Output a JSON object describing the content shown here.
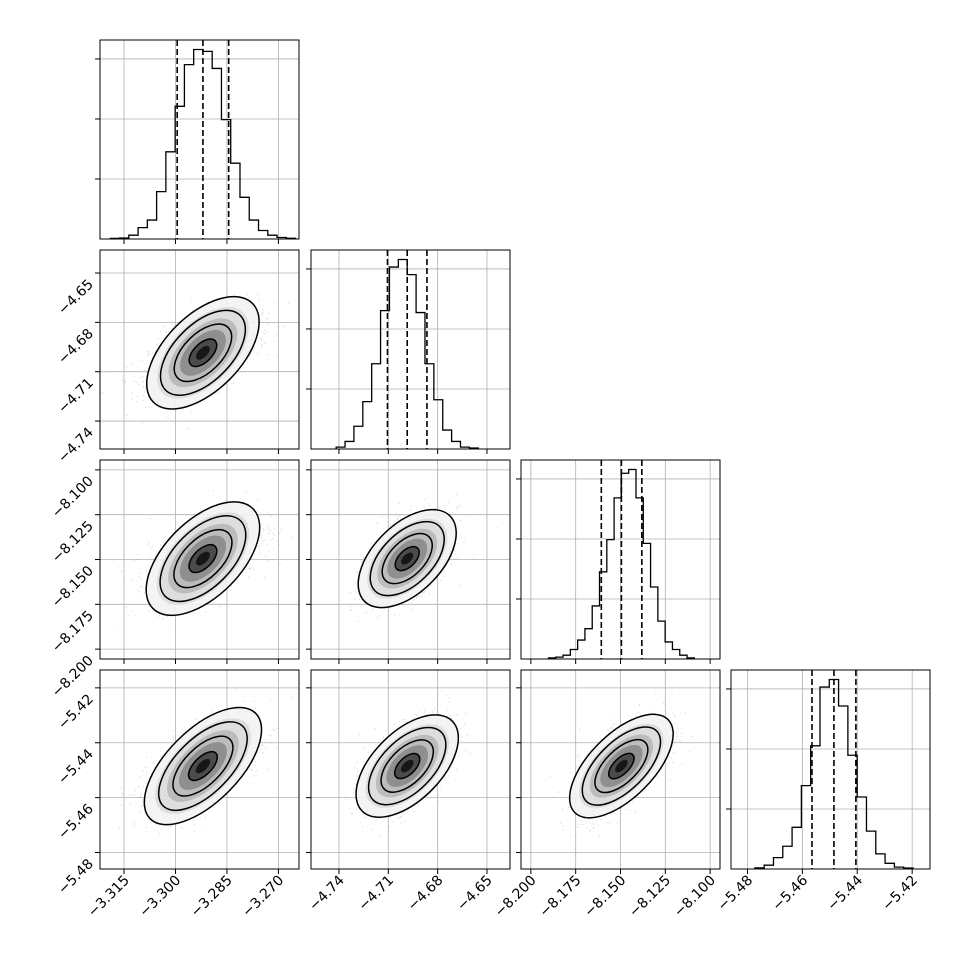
{
  "figure": {
    "type": "corner",
    "n_params": 4,
    "colors": {
      "line": "#000000",
      "grid": "#b0b0b0",
      "points": "#9a9a9a",
      "background": "#ffffff"
    }
  },
  "chart_data": {
    "type": "corner",
    "grid": true,
    "parameters": [
      {
        "range": [
          -3.322,
          -3.264
        ],
        "ticks": [
          -3.315,
          -3.3,
          -3.285,
          -3.27
        ],
        "tick_labels": [
          "−3.315",
          "−3.300",
          "−3.285",
          "−3.270"
        ],
        "median": -3.292,
        "q16": -3.2995,
        "q84": -3.2845,
        "histogram": [
          0.003,
          0.005,
          0.02,
          0.06,
          0.1,
          0.25,
          0.46,
          0.7,
          0.92,
          1.0,
          0.99,
          0.9,
          0.63,
          0.4,
          0.22,
          0.1,
          0.045,
          0.02,
          0.008,
          0.004
        ]
      },
      {
        "range": [
          -4.757,
          -4.636
        ],
        "ticks": [
          -4.74,
          -4.71,
          -4.68,
          -4.65
        ],
        "tick_labels": [
          "−4.74",
          "−4.71",
          "−4.68",
          "−4.65"
        ],
        "median": -4.6985,
        "q16": -4.7105,
        "q84": -4.6865,
        "histogram": [
          0.01,
          0.04,
          0.12,
          0.25,
          0.45,
          0.73,
          0.96,
          1.0,
          0.92,
          0.72,
          0.45,
          0.26,
          0.1,
          0.04,
          0.01,
          0.005
        ]
      },
      {
        "range": [
          -8.2055,
          -8.0945
        ],
        "ticks": [
          -8.2,
          -8.175,
          -8.15,
          -8.125,
          -8.1
        ],
        "tick_labels": [
          "−8.200",
          "−8.175",
          "−8.150",
          "−8.125",
          "−8.100"
        ],
        "median": -8.1495,
        "q16": -8.1607,
        "q84": -8.1381,
        "histogram": [
          0.006,
          0.01,
          0.02,
          0.05,
          0.1,
          0.16,
          0.28,
          0.46,
          0.63,
          0.85,
          0.98,
          1.0,
          0.85,
          0.61,
          0.38,
          0.2,
          0.09,
          0.05,
          0.02,
          0.006
        ]
      },
      {
        "range": [
          -5.486,
          -5.4135
        ],
        "ticks": [
          -5.48,
          -5.46,
          -5.44,
          -5.42
        ],
        "tick_labels": [
          "−5.48",
          "−5.46",
          "−5.44",
          "−5.42"
        ],
        "median": -5.4485,
        "q16": -5.4565,
        "q84": -5.4405,
        "histogram": [
          0.006,
          0.02,
          0.06,
          0.12,
          0.22,
          0.44,
          0.65,
          0.96,
          1.0,
          0.86,
          0.6,
          0.38,
          0.2,
          0.08,
          0.03,
          0.01,
          0.005
        ]
      }
    ],
    "correlations": [
      [
        0,
        1,
        0.55
      ],
      [
        0,
        2,
        0.55
      ],
      [
        1,
        2,
        0.52
      ],
      [
        0,
        3,
        0.62
      ],
      [
        1,
        3,
        0.55
      ],
      [
        2,
        3,
        0.62
      ]
    ],
    "y_tick_labels": [
      [],
      [
        "−4.65",
        "−4.68",
        "−4.71",
        "−4.74"
      ],
      [
        "−8.100",
        "−8.125",
        "−8.150",
        "−8.175",
        "−8.200"
      ],
      [
        "−5.42",
        "−5.44",
        "−5.46",
        "−5.48"
      ]
    ]
  }
}
